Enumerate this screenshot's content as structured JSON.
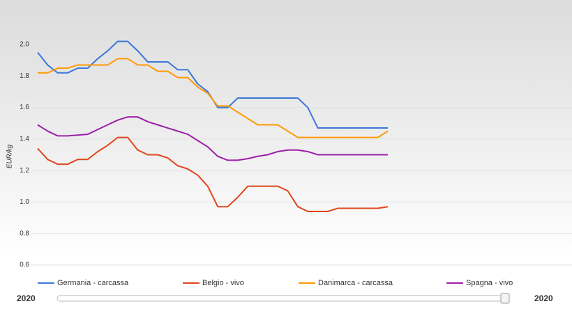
{
  "chart_data": {
    "type": "line",
    "y_label": "EUR/kg",
    "categories": [
      null,
      null,
      null,
      null,
      null,
      null,
      null,
      null,
      null,
      null,
      null,
      null,
      null,
      null,
      null,
      null,
      null,
      null,
      null,
      null,
      null,
      null,
      null,
      null,
      null,
      null,
      null,
      null,
      null,
      null,
      null,
      null,
      null,
      null,
      null,
      null
    ],
    "series": [
      {
        "name": "Germania - carcassa",
        "color": "#3c78d8",
        "values": [
          1.95,
          1.87,
          1.82,
          1.82,
          1.85,
          1.85,
          1.91,
          1.96,
          2.02,
          2.02,
          1.96,
          1.89,
          1.89,
          1.89,
          1.84,
          1.84,
          1.75,
          1.7,
          1.6,
          1.6,
          1.66,
          1.66,
          1.66,
          1.66,
          1.66,
          1.66,
          1.66,
          1.6,
          1.47,
          1.47,
          1.47,
          1.47,
          1.47,
          1.47,
          1.47,
          1.47
        ]
      },
      {
        "name": "Belgio - vivo",
        "color": "#e0461c",
        "values": [
          1.34,
          1.27,
          1.24,
          1.24,
          1.27,
          1.27,
          1.32,
          1.36,
          1.41,
          1.41,
          1.33,
          1.3,
          1.3,
          1.28,
          1.23,
          1.21,
          1.17,
          1.1,
          0.97,
          0.97,
          1.03,
          1.1,
          1.1,
          1.1,
          1.1,
          1.07,
          0.97,
          0.94,
          0.94,
          0.94,
          0.96,
          0.96,
          0.96,
          0.96,
          0.96,
          0.97
        ]
      },
      {
        "name": "Danimarca - carcassa",
        "color": "#ff9900",
        "values": [
          1.82,
          1.82,
          1.85,
          1.85,
          1.87,
          1.87,
          1.87,
          1.87,
          1.91,
          1.91,
          1.87,
          1.87,
          1.83,
          1.83,
          1.79,
          1.79,
          1.73,
          1.69,
          1.61,
          1.61,
          1.57,
          1.53,
          1.49,
          1.49,
          1.49,
          1.45,
          1.41,
          1.41,
          1.41,
          1.41,
          1.41,
          1.41,
          1.41,
          1.41,
          1.41,
          1.45
        ]
      },
      {
        "name": "Spagna - vivo",
        "color": "#9c1ea8",
        "values": [
          1.49,
          1.45,
          1.42,
          1.42,
          1.425,
          1.43,
          1.46,
          1.49,
          1.52,
          1.54,
          1.54,
          1.51,
          1.49,
          1.47,
          1.45,
          1.43,
          1.39,
          1.35,
          1.29,
          1.265,
          1.265,
          1.275,
          1.29,
          1.3,
          1.32,
          1.33,
          1.33,
          1.32,
          1.3,
          1.3,
          1.3,
          1.3,
          1.3,
          1.3,
          1.3,
          1.3
        ]
      }
    ],
    "ylim": [
      0.5,
      2.1
    ],
    "yticks": [
      0.6,
      0.8,
      {
        "value": 1,
        "label": "1.0"
      },
      1.2,
      1.4,
      1.6,
      1.8,
      {
        "value": 2,
        "label": "2.0"
      }
    ],
    "grid": true,
    "slider": {
      "start": "2020",
      "end": "2020"
    }
  }
}
